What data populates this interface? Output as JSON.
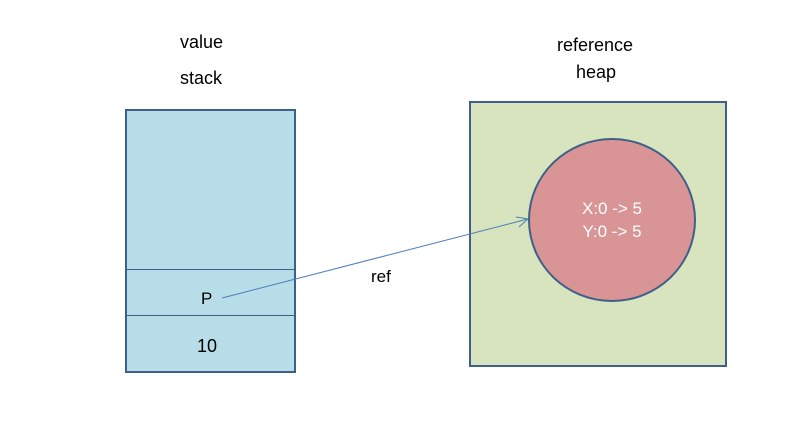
{
  "stack_region": {
    "kind_label": "value",
    "title": "stack",
    "slots": [
      "P",
      "10"
    ]
  },
  "heap_region": {
    "kind_label": "reference",
    "title": "heap",
    "object": {
      "fields": [
        "X:0 -> 5",
        "Y:0 -> 5"
      ]
    }
  },
  "arrow": {
    "label": "ref"
  },
  "colors": {
    "stack_fill": "#b7dde8",
    "heap_fill": "#d7e4bd",
    "object_fill": "#d99595",
    "border": "#3e5f8a",
    "arrow": "#4a7ebb"
  }
}
